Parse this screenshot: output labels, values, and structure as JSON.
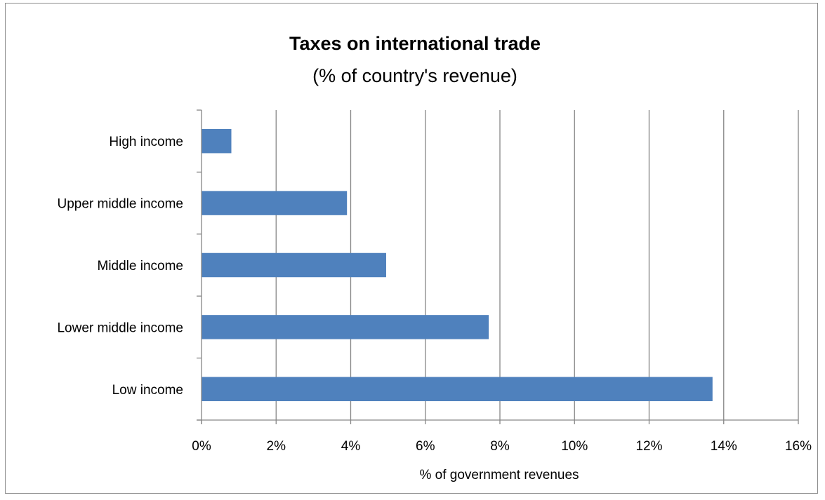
{
  "chart_data": {
    "type": "bar",
    "orientation": "horizontal",
    "title": "Taxes on international trade",
    "subtitle": "(% of country's revenue)",
    "xlabel": "% of government revenues",
    "ylabel": "",
    "categories": [
      "High income",
      "Upper middle income",
      "Middle income",
      "Lower middle income",
      "Low income"
    ],
    "values": [
      0.8,
      3.9,
      4.95,
      7.7,
      13.7
    ],
    "xlim": [
      0,
      16
    ],
    "xticks": [
      0,
      2,
      4,
      6,
      8,
      10,
      12,
      14,
      16
    ],
    "tick_labels": [
      "0%",
      "2%",
      "4%",
      "6%",
      "8%",
      "10%",
      "12%",
      "14%",
      "16%"
    ],
    "grid": "vertical",
    "legend": "none",
    "bar_color": "#4f81bd",
    "grid_color": "#868686"
  }
}
